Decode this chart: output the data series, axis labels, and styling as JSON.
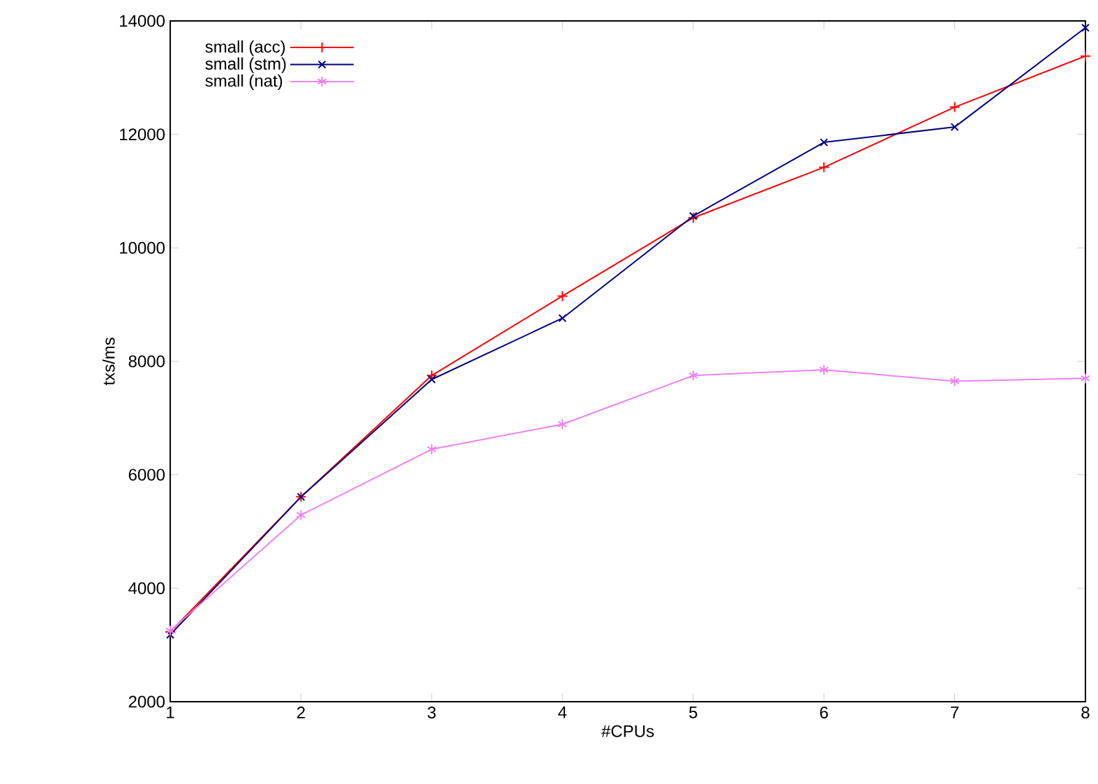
{
  "chart_data": {
    "type": "line",
    "xlabel": "#CPUs",
    "ylabel": "txs/ms",
    "x": [
      1,
      2,
      3,
      4,
      5,
      6,
      7,
      8
    ],
    "xlim": [
      1,
      8
    ],
    "ylim": [
      2000,
      14000
    ],
    "xticks": [
      1,
      2,
      3,
      4,
      5,
      6,
      7,
      8
    ],
    "yticks": [
      2000,
      4000,
      6000,
      8000,
      10000,
      12000,
      14000
    ],
    "legend": "top left",
    "grid": false,
    "line_style": "solid",
    "marker": "cross",
    "series": [
      {
        "name": "small (acc)",
        "color": "#ff0000",
        "values": [
          3230,
          5610,
          7750,
          9150,
          10530,
          11420,
          12480,
          13380
        ]
      },
      {
        "name": "small (stm)",
        "color": "#000080",
        "values": [
          3180,
          5610,
          7680,
          8760,
          10560,
          11860,
          12130,
          13880
        ]
      },
      {
        "name": "small (nat)",
        "color": "#ee82ee",
        "values": [
          3250,
          5290,
          6450,
          6890,
          7750,
          7850,
          7650,
          7700
        ]
      }
    ]
  }
}
